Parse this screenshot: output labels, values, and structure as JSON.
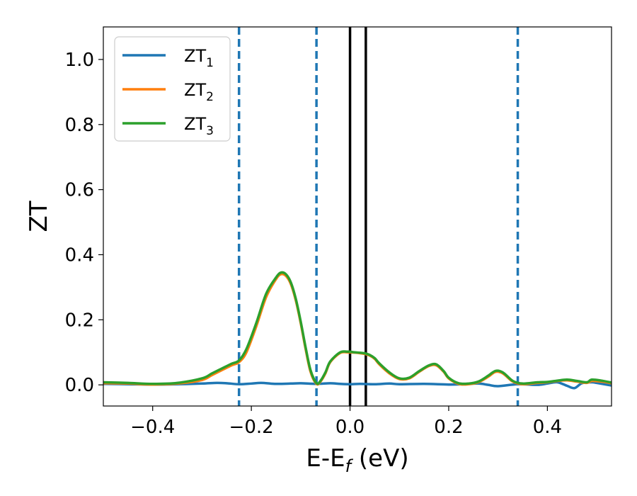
{
  "chart_data": {
    "type": "line",
    "title": "",
    "xlabel_main": "E-E",
    "xlabel_sub": "f",
    "xlabel_unit": " (eV)",
    "ylabel": "ZT",
    "xlim": [
      -0.5,
      0.53
    ],
    "ylim": [
      -0.065,
      1.1
    ],
    "xticks": [
      -0.4,
      -0.2,
      0.0,
      0.2,
      0.4
    ],
    "xtick_labels": [
      "−0.4",
      "−0.2",
      "0.0",
      "0.2",
      "0.4"
    ],
    "yticks": [
      0.0,
      0.2,
      0.4,
      0.6,
      0.8,
      1.0
    ],
    "ytick_labels": [
      "0.0",
      "0.2",
      "0.4",
      "0.6",
      "0.8",
      "1.0"
    ],
    "grid": false,
    "legend_position": "top-left",
    "dashed_vlines": [
      -0.225,
      -0.068,
      0.34
    ],
    "solid_vlines": [
      0.0,
      0.032
    ],
    "vline_colors": {
      "dashed": "#1f77b4",
      "solid": "#000000"
    },
    "series": [
      {
        "name": "ZT",
        "subscript": "1",
        "color": "#1f77b4",
        "x": [
          -0.5,
          -0.45,
          -0.4,
          -0.35,
          -0.3,
          -0.27,
          -0.25,
          -0.225,
          -0.2,
          -0.18,
          -0.15,
          -0.12,
          -0.1,
          -0.068,
          -0.04,
          -0.02,
          0.0,
          0.02,
          0.05,
          0.08,
          0.1,
          0.15,
          0.2,
          0.23,
          0.26,
          0.28,
          0.3,
          0.34,
          0.38,
          0.4,
          0.42,
          0.44,
          0.455,
          0.47,
          0.49,
          0.5,
          0.53
        ],
        "y": [
          0.003,
          0.002,
          0.001,
          0.002,
          0.004,
          0.006,
          0.005,
          0.002,
          0.004,
          0.006,
          0.003,
          0.004,
          0.005,
          0.003,
          0.005,
          0.003,
          0.002,
          0.003,
          0.002,
          0.004,
          0.002,
          0.003,
          0.001,
          0.002,
          0.004,
          0.0,
          -0.004,
          0.002,
          0.0,
          0.004,
          0.008,
          -0.003,
          -0.01,
          0.005,
          0.008,
          0.006,
          -0.002
        ]
      },
      {
        "name": "ZT",
        "subscript": "2",
        "color": "#ff7f0e",
        "x": [
          -0.5,
          -0.45,
          -0.4,
          -0.35,
          -0.3,
          -0.28,
          -0.26,
          -0.24,
          -0.225,
          -0.21,
          -0.19,
          -0.17,
          -0.15,
          -0.14,
          -0.13,
          -0.12,
          -0.11,
          -0.1,
          -0.09,
          -0.08,
          -0.068,
          -0.06,
          -0.05,
          -0.04,
          -0.02,
          -0.005,
          0.01,
          0.03,
          0.04,
          0.05,
          0.06,
          0.08,
          0.1,
          0.12,
          0.14,
          0.16,
          0.175,
          0.19,
          0.2,
          0.22,
          0.24,
          0.26,
          0.28,
          0.295,
          0.31,
          0.33,
          0.35,
          0.38,
          0.4,
          0.42,
          0.44,
          0.46,
          0.48,
          0.49,
          0.51,
          0.53
        ],
        "y": [
          0.005,
          0.004,
          0.001,
          0.004,
          0.015,
          0.03,
          0.045,
          0.06,
          0.07,
          0.1,
          0.18,
          0.27,
          0.325,
          0.34,
          0.335,
          0.31,
          0.26,
          0.19,
          0.11,
          0.04,
          0.003,
          0.01,
          0.035,
          0.07,
          0.098,
          0.1,
          0.099,
          0.095,
          0.09,
          0.08,
          0.062,
          0.035,
          0.018,
          0.02,
          0.04,
          0.058,
          0.06,
          0.04,
          0.02,
          0.003,
          0.002,
          0.008,
          0.025,
          0.04,
          0.035,
          0.01,
          0.002,
          0.006,
          0.008,
          0.012,
          0.014,
          0.01,
          0.006,
          0.012,
          0.01,
          0.005
        ]
      },
      {
        "name": "ZT",
        "subscript": "3",
        "color": "#2ca02c",
        "x": [
          -0.5,
          -0.45,
          -0.4,
          -0.35,
          -0.3,
          -0.28,
          -0.26,
          -0.24,
          -0.225,
          -0.21,
          -0.19,
          -0.17,
          -0.15,
          -0.14,
          -0.13,
          -0.12,
          -0.11,
          -0.1,
          -0.09,
          -0.08,
          -0.068,
          -0.06,
          -0.05,
          -0.04,
          -0.02,
          -0.005,
          0.01,
          0.03,
          0.04,
          0.05,
          0.06,
          0.08,
          0.1,
          0.12,
          0.14,
          0.16,
          0.175,
          0.19,
          0.2,
          0.22,
          0.24,
          0.26,
          0.28,
          0.295,
          0.31,
          0.33,
          0.35,
          0.38,
          0.4,
          0.42,
          0.44,
          0.46,
          0.48,
          0.49,
          0.51,
          0.53
        ],
        "y": [
          0.008,
          0.006,
          0.003,
          0.006,
          0.02,
          0.035,
          0.05,
          0.065,
          0.075,
          0.11,
          0.19,
          0.28,
          0.33,
          0.345,
          0.34,
          0.315,
          0.265,
          0.195,
          0.115,
          0.045,
          0.005,
          0.012,
          0.038,
          0.072,
          0.1,
          0.102,
          0.1,
          0.097,
          0.092,
          0.082,
          0.065,
          0.038,
          0.02,
          0.022,
          0.042,
          0.06,
          0.063,
          0.042,
          0.022,
          0.005,
          0.004,
          0.01,
          0.028,
          0.043,
          0.038,
          0.012,
          0.004,
          0.008,
          0.009,
          0.013,
          0.016,
          0.012,
          0.008,
          0.016,
          0.013,
          0.007
        ]
      }
    ]
  }
}
